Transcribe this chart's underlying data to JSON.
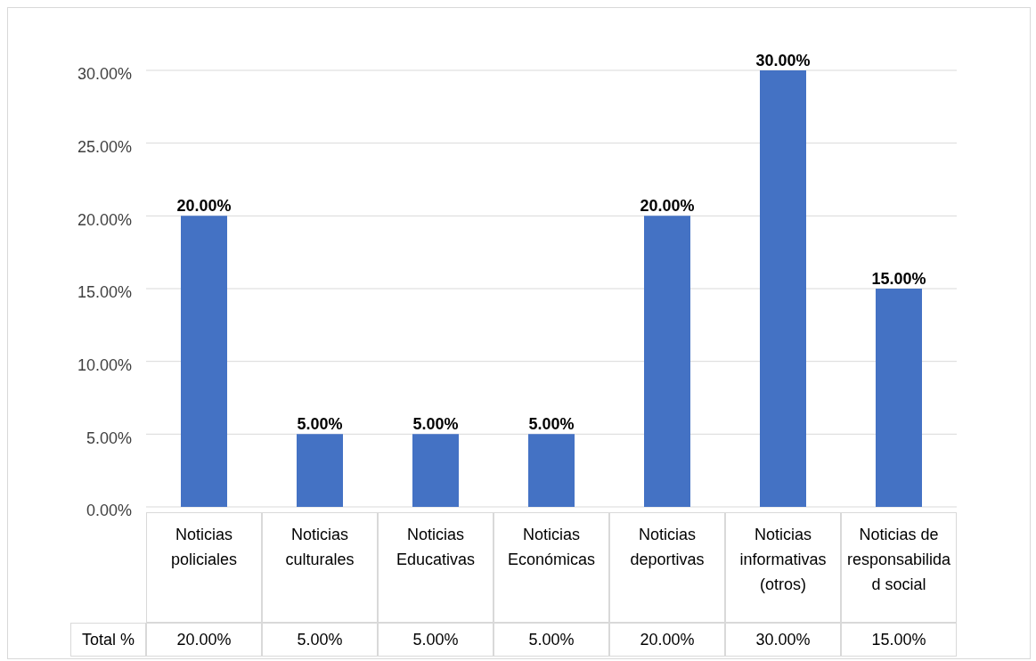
{
  "chart_data": {
    "type": "bar",
    "categories": [
      "Noticias policiales",
      "Noticias culturales",
      "Noticias Educativas",
      "Noticias Económicas",
      "Noticias deportivas",
      "Noticias informativas (otros)",
      "Noticias de responsabilidad social"
    ],
    "values": [
      20,
      5,
      5,
      5,
      20,
      30,
      15
    ],
    "value_labels": [
      "20.00%",
      "5.00%",
      "5.00%",
      "5.00%",
      "20.00%",
      "30.00%",
      "15.00%"
    ],
    "color": "#4472c4",
    "ylim": [
      0,
      30
    ],
    "yticks": [
      {
        "value": 0,
        "label": "0.00%"
      },
      {
        "value": 5,
        "label": "5.00%"
      },
      {
        "value": 10,
        "label": "10.00%"
      },
      {
        "value": 15,
        "label": "15.00%"
      },
      {
        "value": 20,
        "label": "20.00%"
      },
      {
        "value": 25,
        "label": "25.00%"
      },
      {
        "value": 30,
        "label": "30.00%"
      }
    ],
    "grid": "y",
    "annotations": [
      "Total %"
    ]
  }
}
